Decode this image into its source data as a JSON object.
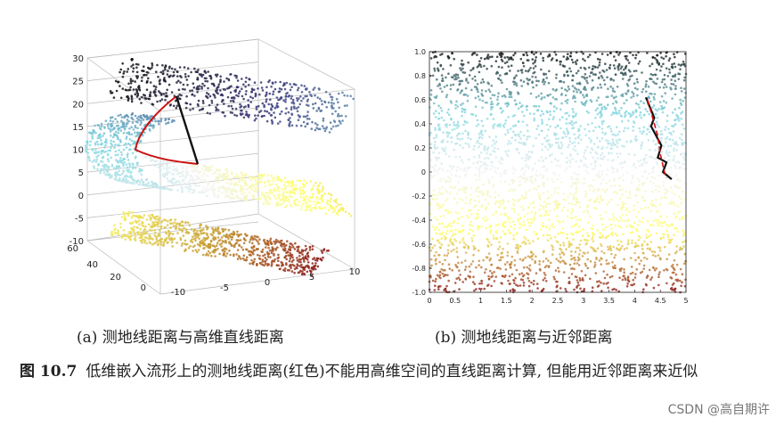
{
  "figure": {
    "label": "图 10.7",
    "caption": "低维嵌入流形上的测地线距离(红色)不能用高维空间的直线距离计算, 但能用近邻距离来近似"
  },
  "panel_a": {
    "caption": "(a) 测地线距离与高维直线距离"
  },
  "panel_b": {
    "caption": "(b) 测地线距离与近邻距离"
  },
  "watermark": "CSDN @高自期许",
  "chart_data": [
    {
      "type": "scatter",
      "title": "",
      "projection": "3d",
      "z_ticks": [
        "30",
        "25",
        "20",
        "15",
        "10",
        "5",
        "0",
        "-5",
        "-10"
      ],
      "depth_ticks": [
        "60",
        "40",
        "20",
        "0"
      ],
      "x_ticks": [
        "-10",
        "-5",
        "0",
        "5",
        "10"
      ],
      "zlim": [
        -10,
        30
      ],
      "ylim": [
        0,
        60
      ],
      "xlim": [
        -10,
        10
      ],
      "colormap": [
        "#111111",
        "#3a3a7a",
        "#7fd6e0",
        "#f2f2f2",
        "#ffff66",
        "#c8a033",
        "#8b1a1a"
      ],
      "grid": true
    },
    {
      "type": "scatter",
      "title": "",
      "x_ticks": [
        "0",
        "0.5",
        "1",
        "1.5",
        "2",
        "2.5",
        "3",
        "3.5",
        "4",
        "4.5",
        "5"
      ],
      "y_ticks": [
        "1.0",
        "0.8",
        "0.6",
        "0.4",
        "0.2",
        "0",
        "-0.2",
        "-0.4",
        "-0.6",
        "-0.8",
        "-1.0"
      ],
      "xlim": [
        0,
        5
      ],
      "ylim": [
        -1,
        1
      ],
      "colormap": [
        "#111111",
        "#7fd6e0",
        "#f2f2f2",
        "#ffff66",
        "#8b1a1a"
      ],
      "geodesic_path": {
        "color": "#cc1111",
        "x": [
          4.25,
          4.35,
          4.45,
          4.5,
          4.58,
          4.62
        ],
        "y": [
          0.6,
          0.45,
          0.3,
          0.15,
          0.0,
          -0.05
        ]
      },
      "neighbor_path": {
        "color": "#111111",
        "x": [
          4.22,
          4.38,
          4.32,
          4.52,
          4.45,
          4.62,
          4.55,
          4.72
        ],
        "y": [
          0.62,
          0.45,
          0.38,
          0.22,
          0.12,
          0.08,
          0.0,
          -0.06
        ]
      }
    }
  ]
}
